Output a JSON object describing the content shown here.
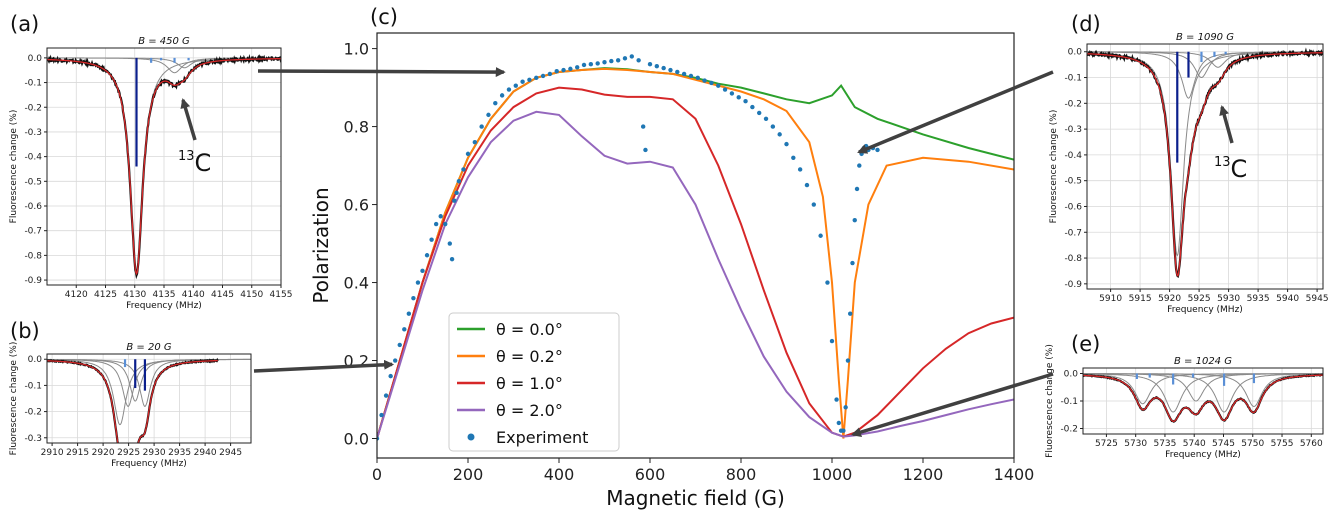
{
  "figure": {
    "arrow_color": "#404040"
  },
  "chart_data": [
    {
      "id": "c",
      "panel_label": "(c)",
      "type": "line",
      "xlabel": "Magnetic field (G)",
      "ylabel": "Polarization",
      "xlim": [
        0,
        1400
      ],
      "ylim": [
        -0.05,
        1.04
      ],
      "xticks": [
        0,
        200,
        400,
        600,
        800,
        1000,
        1200,
        1400
      ],
      "yticks": [
        0.0,
        0.2,
        0.4,
        0.6,
        0.8,
        1.0
      ],
      "grid": false,
      "legend_position": "lower-left",
      "series": [
        {
          "name": "θ = 0.0°",
          "color": "#2ca02c",
          "x": [
            0,
            50,
            100,
            150,
            200,
            250,
            300,
            350,
            400,
            450,
            500,
            550,
            600,
            650,
            700,
            750,
            800,
            850,
            900,
            950,
            1000,
            1020,
            1050,
            1100,
            1200,
            1300,
            1400
          ],
          "y": [
            0.0,
            0.2,
            0.4,
            0.58,
            0.72,
            0.82,
            0.89,
            0.925,
            0.94,
            0.945,
            0.95,
            0.947,
            0.94,
            0.935,
            0.925,
            0.91,
            0.9,
            0.885,
            0.87,
            0.86,
            0.88,
            0.905,
            0.85,
            0.82,
            0.78,
            0.745,
            0.715
          ]
        },
        {
          "name": "θ = 0.2°",
          "color": "#ff7f0e",
          "x": [
            0,
            50,
            100,
            150,
            200,
            250,
            300,
            350,
            400,
            450,
            500,
            550,
            600,
            650,
            700,
            750,
            800,
            850,
            900,
            950,
            980,
            1000,
            1015,
            1025,
            1035,
            1050,
            1080,
            1120,
            1200,
            1300,
            1400
          ],
          "y": [
            0.0,
            0.2,
            0.4,
            0.58,
            0.72,
            0.82,
            0.89,
            0.925,
            0.94,
            0.945,
            0.948,
            0.945,
            0.94,
            0.935,
            0.92,
            0.905,
            0.89,
            0.87,
            0.84,
            0.76,
            0.62,
            0.4,
            0.15,
            0.0,
            0.15,
            0.4,
            0.6,
            0.7,
            0.72,
            0.71,
            0.69
          ]
        },
        {
          "name": "θ = 1.0°",
          "color": "#d62728",
          "x": [
            0,
            50,
            100,
            150,
            200,
            250,
            300,
            350,
            400,
            450,
            500,
            550,
            600,
            650,
            700,
            750,
            800,
            850,
            900,
            950,
            1000,
            1025,
            1050,
            1100,
            1150,
            1200,
            1250,
            1300,
            1350,
            1400
          ],
          "y": [
            0.0,
            0.2,
            0.4,
            0.57,
            0.7,
            0.79,
            0.85,
            0.885,
            0.9,
            0.895,
            0.882,
            0.876,
            0.876,
            0.87,
            0.82,
            0.7,
            0.55,
            0.38,
            0.22,
            0.09,
            0.015,
            0.005,
            0.015,
            0.06,
            0.12,
            0.18,
            0.23,
            0.27,
            0.295,
            0.31
          ]
        },
        {
          "name": "θ = 2.0°",
          "color": "#9467bd",
          "x": [
            0,
            50,
            100,
            150,
            200,
            250,
            300,
            350,
            400,
            450,
            500,
            550,
            600,
            650,
            700,
            750,
            800,
            850,
            900,
            950,
            1000,
            1025,
            1050,
            1100,
            1150,
            1200,
            1250,
            1300,
            1350,
            1400
          ],
          "y": [
            0.0,
            0.19,
            0.38,
            0.55,
            0.67,
            0.76,
            0.815,
            0.838,
            0.83,
            0.775,
            0.725,
            0.705,
            0.71,
            0.695,
            0.6,
            0.46,
            0.33,
            0.21,
            0.12,
            0.055,
            0.015,
            0.005,
            0.008,
            0.018,
            0.032,
            0.045,
            0.06,
            0.075,
            0.088,
            0.1
          ]
        },
        {
          "name": "Experiment",
          "color": "#1f77b4",
          "marker": "dot",
          "x": [
            0,
            10,
            20,
            30,
            40,
            50,
            60,
            70,
            80,
            90,
            100,
            110,
            120,
            130,
            140,
            150,
            160,
            165,
            170,
            175,
            180,
            190,
            200,
            215,
            230,
            245,
            260,
            275,
            290,
            305,
            320,
            335,
            350,
            365,
            380,
            395,
            410,
            425,
            440,
            455,
            470,
            485,
            500,
            515,
            530,
            545,
            560,
            575,
            585,
            590,
            600,
            615,
            630,
            645,
            660,
            675,
            690,
            705,
            720,
            735,
            750,
            765,
            780,
            795,
            810,
            825,
            840,
            855,
            870,
            885,
            900,
            915,
            930,
            945,
            960,
            975,
            990,
            1000,
            1010,
            1015,
            1020,
            1025,
            1030,
            1035,
            1040,
            1045,
            1050,
            1055,
            1060,
            1065,
            1070,
            1075,
            1080,
            1090,
            1100
          ],
          "y": [
            0.0,
            0.06,
            0.11,
            0.16,
            0.2,
            0.24,
            0.28,
            0.32,
            0.36,
            0.4,
            0.43,
            0.47,
            0.51,
            0.55,
            0.57,
            0.55,
            0.5,
            0.46,
            0.61,
            0.63,
            0.66,
            0.69,
            0.73,
            0.76,
            0.8,
            0.83,
            0.86,
            0.88,
            0.895,
            0.905,
            0.915,
            0.92,
            0.925,
            0.93,
            0.935,
            0.942,
            0.945,
            0.948,
            0.952,
            0.958,
            0.96,
            0.962,
            0.965,
            0.968,
            0.97,
            0.975,
            0.98,
            0.97,
            0.8,
            0.74,
            0.96,
            0.955,
            0.95,
            0.945,
            0.94,
            0.935,
            0.93,
            0.925,
            0.918,
            0.912,
            0.905,
            0.895,
            0.885,
            0.875,
            0.865,
            0.85,
            0.835,
            0.82,
            0.8,
            0.78,
            0.755,
            0.72,
            0.69,
            0.65,
            0.6,
            0.52,
            0.4,
            0.25,
            0.1,
            0.04,
            0.02,
            0.02,
            0.08,
            0.2,
            0.32,
            0.45,
            0.56,
            0.64,
            0.7,
            0.73,
            0.745,
            0.75,
            0.74,
            0.745,
            0.74
          ]
        }
      ]
    },
    {
      "id": "a",
      "panel_label": "(a)",
      "type": "line",
      "title": "B = 450 G",
      "xlabel": "Frequency (MHz)",
      "ylabel": "Fluorescence change (%)",
      "xlim": [
        4115,
        4155
      ],
      "ylim": [
        -0.92,
        0.04
      ],
      "xticks": [
        4120,
        4125,
        4130,
        4135,
        4140,
        4145,
        4150,
        4155
      ],
      "yticks": [
        0.0,
        -0.1,
        -0.2,
        -0.3,
        -0.4,
        -0.5,
        -0.6,
        -0.7,
        -0.8,
        -0.9
      ],
      "grid": true,
      "annotation": "13C",
      "sticks": [
        {
          "x": 4130.3,
          "y": -0.44
        },
        {
          "x": 4132.8,
          "y": -0.02
        },
        {
          "x": 4134.5,
          "y": -0.01
        },
        {
          "x": 4136.8,
          "y": -0.02
        },
        {
          "x": 4139.2,
          "y": -0.01
        }
      ],
      "components": [
        {
          "center": 4130.3,
          "depth": -0.87,
          "width": 1.3
        },
        {
          "center": 4136.8,
          "depth": -0.06,
          "width": 1.6
        },
        {
          "center": 4138.5,
          "depth": -0.04,
          "width": 1.5
        }
      ]
    },
    {
      "id": "b",
      "panel_label": "(b)",
      "type": "line",
      "title": "B = 20 G",
      "xlabel": "Frequency (MHz)",
      "ylabel": "Fluorescence change (%)",
      "xlim": [
        2909,
        2949
      ],
      "ylim": [
        -0.32,
        0.02
      ],
      "xticks": [
        2910,
        2915,
        2920,
        2925,
        2930,
        2935,
        2940,
        2945
      ],
      "yticks": [
        0.0,
        -0.1,
        -0.2,
        -0.3
      ],
      "grid": true,
      "sticks": [
        {
          "x": 2924.3,
          "y": -0.03
        },
        {
          "x": 2926.3,
          "y": -0.11
        },
        {
          "x": 2928.2,
          "y": -0.12
        }
      ],
      "components": [
        {
          "center": 2923.3,
          "depth": -0.25,
          "width": 1.5
        },
        {
          "center": 2924.9,
          "depth": -0.18,
          "width": 1.4
        },
        {
          "center": 2926.3,
          "depth": -0.16,
          "width": 1.3
        },
        {
          "center": 2928.2,
          "depth": -0.18,
          "width": 1.3
        }
      ]
    },
    {
      "id": "d",
      "panel_label": "(d)",
      "type": "line",
      "title": "B = 1090 G",
      "xlabel": "Frequency (MHz)",
      "ylabel": "Fluorescence change (%)",
      "xlim": [
        5906,
        5946
      ],
      "ylim": [
        -0.92,
        0.03
      ],
      "xticks": [
        5910,
        5915,
        5920,
        5925,
        5930,
        5935,
        5940,
        5945
      ],
      "yticks": [
        0.0,
        -0.1,
        -0.2,
        -0.3,
        -0.4,
        -0.5,
        -0.6,
        -0.7,
        -0.8,
        -0.9
      ],
      "grid": true,
      "annotation": "13C",
      "sticks": [
        {
          "x": 5921.3,
          "y": -0.43
        },
        {
          "x": 5923.2,
          "y": -0.1
        },
        {
          "x": 5925.4,
          "y": -0.04
        },
        {
          "x": 5927.6,
          "y": -0.02
        },
        {
          "x": 5929.5,
          "y": -0.01
        }
      ],
      "components": [
        {
          "center": 5921.3,
          "depth": -0.79,
          "width": 1.3
        },
        {
          "center": 5923.2,
          "depth": -0.18,
          "width": 1.4
        },
        {
          "center": 5925.4,
          "depth": -0.1,
          "width": 1.5
        },
        {
          "center": 5928.2,
          "depth": -0.06,
          "width": 1.6
        }
      ]
    },
    {
      "id": "e",
      "panel_label": "(e)",
      "type": "line",
      "title": "B = 1024 G",
      "xlabel": "Frequency (MHz)",
      "ylabel": "Fluorescence change (%)",
      "xlim": [
        5721,
        5762
      ],
      "ylim": [
        -0.22,
        0.02
      ],
      "xticks": [
        5725,
        5730,
        5735,
        5740,
        5745,
        5750,
        5755,
        5760
      ],
      "yticks": [
        0.0,
        -0.1,
        -0.2
      ],
      "grid": true,
      "sticks": [
        {
          "x": 5730.2,
          "y": -0.02
        },
        {
          "x": 5732.4,
          "y": -0.015
        },
        {
          "x": 5736.4,
          "y": -0.04
        },
        {
          "x": 5739.8,
          "y": -0.015
        },
        {
          "x": 5745.1,
          "y": -0.045
        },
        {
          "x": 5750.2,
          "y": -0.035
        }
      ],
      "components": [
        {
          "center": 5731.2,
          "depth": -0.11,
          "width": 1.7
        },
        {
          "center": 5736.4,
          "depth": -0.14,
          "width": 1.8
        },
        {
          "center": 5740.3,
          "depth": -0.1,
          "width": 1.7
        },
        {
          "center": 5745.1,
          "depth": -0.14,
          "width": 1.8
        },
        {
          "center": 5750.2,
          "depth": -0.12,
          "width": 1.7
        }
      ]
    }
  ]
}
